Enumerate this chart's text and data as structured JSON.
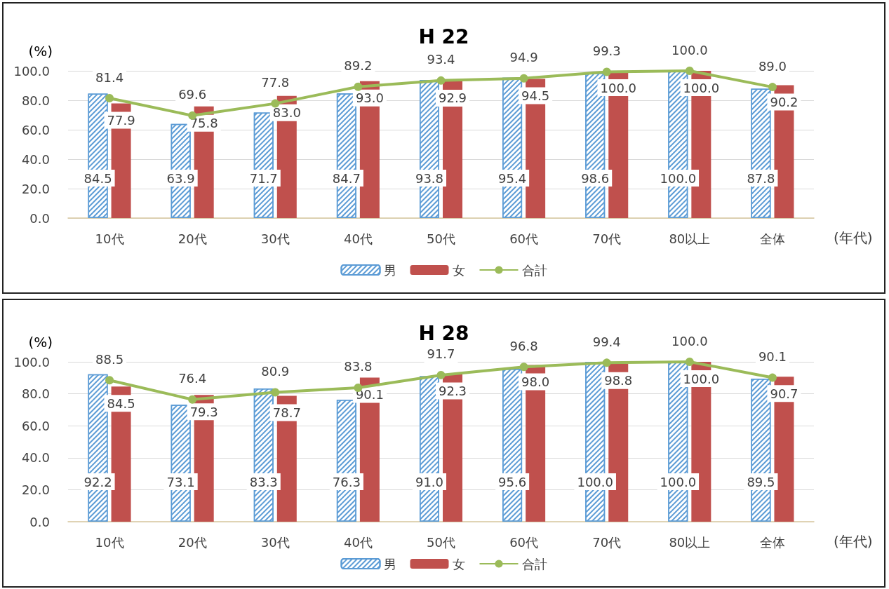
{
  "chart_data": [
    {
      "type": "bar",
      "title": "H 22",
      "xlabel": "(年代)",
      "ylabel": "(%)",
      "categories": [
        "10代",
        "20代",
        "30代",
        "40代",
        "50代",
        "60代",
        "70代",
        "80以上",
        "全体"
      ],
      "ylim": [
        0,
        100
      ],
      "yticks": [
        {
          "value": 0,
          "label": "0.0"
        },
        {
          "value": 20,
          "label": "20.0"
        },
        {
          "value": 40,
          "label": "40.0"
        },
        {
          "value": 60,
          "label": "60.0"
        },
        {
          "value": 80,
          "label": "80.0"
        },
        {
          "value": 100,
          "label": "100.0"
        }
      ],
      "grid": "y",
      "legend": "bottom",
      "marker": "circle",
      "series": [
        {
          "name": "男",
          "color": "#5b9bd5",
          "values": [
            84.5,
            63.9,
            71.7,
            84.7,
            93.8,
            95.4,
            98.6,
            100.0,
            87.8
          ],
          "value_labels": [
            "84.5",
            "63.9",
            "71.7",
            "84.7",
            "93.8",
            "95.4",
            "98.6",
            "100.0",
            "87.8"
          ]
        },
        {
          "name": "女",
          "color": "#c0504d",
          "values": [
            77.9,
            75.8,
            83.0,
            93.0,
            92.9,
            94.5,
            100.0,
            100.0,
            90.2
          ],
          "value_labels": [
            "77.9",
            "75.8",
            "83.0",
            "93.0",
            "92.9",
            "94.5",
            "100.0",
            "100.0",
            "90.2"
          ]
        },
        {
          "name": "合計",
          "type": "line",
          "color": "#9bbb59",
          "values": [
            81.4,
            69.6,
            77.8,
            89.2,
            93.4,
            94.9,
            99.3,
            100.0,
            89.0
          ],
          "value_labels": [
            "81.4",
            "69.6",
            "77.8",
            "89.2",
            "93.4",
            "94.9",
            "99.3",
            "100.0",
            "89.0"
          ]
        }
      ]
    },
    {
      "type": "bar",
      "title": "H 28",
      "xlabel": "(年代)",
      "ylabel": "(%)",
      "categories": [
        "10代",
        "20代",
        "30代",
        "40代",
        "50代",
        "60代",
        "70代",
        "80以上",
        "全体"
      ],
      "ylim": [
        0,
        100
      ],
      "yticks": [
        {
          "value": 0,
          "label": "0.0"
        },
        {
          "value": 20,
          "label": "20.0"
        },
        {
          "value": 40,
          "label": "40.0"
        },
        {
          "value": 60,
          "label": "60.0"
        },
        {
          "value": 80,
          "label": "80.0"
        },
        {
          "value": 100,
          "label": "100.0"
        }
      ],
      "grid": "y",
      "legend": "bottom",
      "marker": "circle",
      "series": [
        {
          "name": "男",
          "color": "#5b9bd5",
          "values": [
            92.2,
            73.1,
            83.3,
            76.3,
            91.0,
            95.6,
            100.0,
            100.0,
            89.5
          ],
          "value_labels": [
            "92.2",
            "73.1",
            "83.3",
            "76.3",
            "91.0",
            "95.6",
            "100.0",
            "100.0",
            "89.5"
          ]
        },
        {
          "name": "女",
          "color": "#c0504d",
          "values": [
            84.5,
            79.3,
            78.7,
            90.1,
            92.3,
            98.0,
            98.8,
            100.0,
            90.7
          ],
          "value_labels": [
            "84.5",
            "79.3",
            "78.7",
            "90.1",
            "92.3",
            "98.0",
            "98.8",
            "100.0",
            "90.7"
          ]
        },
        {
          "name": "合計",
          "type": "line",
          "color": "#9bbb59",
          "values": [
            88.5,
            76.4,
            80.9,
            83.8,
            91.7,
            96.8,
            99.4,
            100.0,
            90.1
          ],
          "value_labels": [
            "88.5",
            "76.4",
            "80.9",
            "83.8",
            "91.7",
            "96.8",
            "99.4",
            "100.0",
            "90.1"
          ]
        }
      ]
    }
  ]
}
